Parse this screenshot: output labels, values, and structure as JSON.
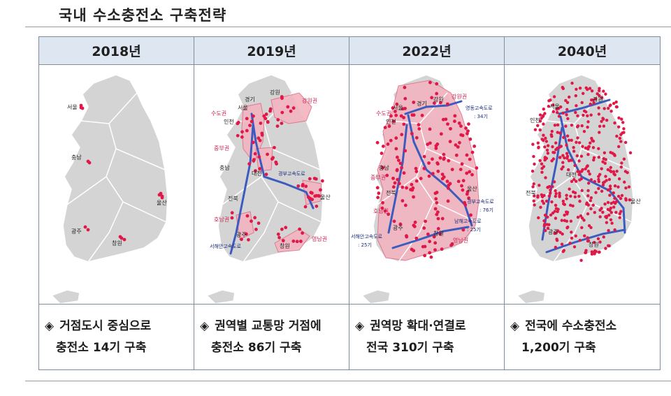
{
  "title": "국내 수소충전소 구축전략",
  "columns": [
    {
      "year": "2018년",
      "caption_line1": "거점도시 중심으로",
      "caption_line2": "충전소 14기 구축",
      "map_labels": {
        "seoul": "서울",
        "chungnam": "충남",
        "ulsan": "울산",
        "gwangju": "광주",
        "changwon": "창원"
      }
    },
    {
      "year": "2019년",
      "caption_line1": "권역별 교통망 거점에",
      "caption_line2": "충전소 86기 구축",
      "map_labels": {
        "seoul": "서울",
        "gyeonggi": "경기",
        "gangwon": "강원",
        "gangwon_region": "강원권",
        "capital_region": "수도권",
        "incheon": "인천",
        "central_region": "중부권",
        "chungnam": "충남",
        "daejeon": "대전",
        "gyeongbu": "경부고속도로",
        "jeonbuk": "전북",
        "ulsan": "울산",
        "honam_region": "호남권",
        "gwangju": "광주",
        "yeongnam_region": "영남권",
        "changwon": "창원",
        "seohaean": "서해안고속도로"
      }
    },
    {
      "year": "2022년",
      "caption_line1": "권역망 확대·연결로",
      "caption_line2": "전국 310기 구축",
      "map_labels": {
        "gangwon_region": "강원권",
        "gyeonggi": "경기",
        "gangwon": "강원",
        "capital_region": "수도권",
        "seoul": "서울",
        "incheon": "인천",
        "yeongdong": "영동고속도로",
        "yeongdong_count": ": 34기",
        "chungnam": "충남",
        "central_region": "중부권",
        "jeonbuk": "전북",
        "ulsan": "울산",
        "honam_region": "호남권",
        "gyeongbu": "경부고속도로",
        "gyeongbu_count": ": 76기",
        "namhae": "남해고속도로",
        "namhae_count": ": 25기",
        "seohaean": "서해안고속도로",
        "seohaean_count": ": 25기",
        "gwangju": "광주",
        "changwon": "창원",
        "yeongnam_region": "영남권"
      }
    },
    {
      "year": "2040년",
      "caption_line1": "전국에 수소충전소",
      "caption_line2": "1,200기 구축",
      "map_labels": {
        "seoul": "서울",
        "gangwon": "강원",
        "incheon": "인천",
        "daejeon": "대전",
        "jeonbuk": "전북",
        "ulsan": "울산",
        "gwangju": "광주",
        "changwon": "창원"
      }
    }
  ],
  "colors": {
    "header_bg": "#dde6f1",
    "land": "#d4d4d4",
    "region_fill": "#f3b4bf",
    "station": "#e01848",
    "highway": "#3c5bbf"
  }
}
